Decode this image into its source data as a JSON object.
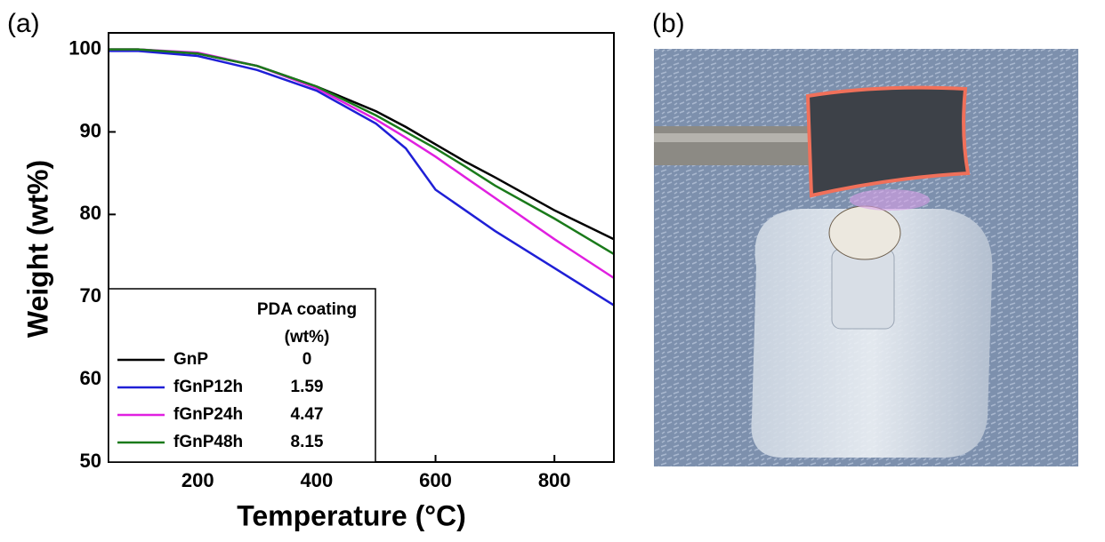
{
  "chart_data": {
    "type": "line",
    "panel_label": "(a)",
    "x_label": "Temperature (°C)",
    "y_label": "Weight (wt%)",
    "x": [
      50,
      100,
      200,
      300,
      400,
      500,
      550,
      600,
      650,
      700,
      800,
      900
    ],
    "series": [
      {
        "name": "GnP",
        "pda_coating": "0",
        "color": "#000000",
        "values": [
          100,
          100,
          99.5,
          98,
          95.5,
          92.5,
          90.6,
          88.5,
          86.4,
          84.5,
          80.5,
          77
        ]
      },
      {
        "name": "fGnP12h",
        "pda_coating": "1.59",
        "color": "#1f1fd6",
        "values": [
          99.8,
          99.8,
          99.2,
          97.5,
          95,
          91,
          88,
          83,
          80.5,
          78,
          73.5,
          69
        ]
      },
      {
        "name": "fGnP24h",
        "pda_coating": "4.47",
        "color": "#e020e0",
        "values": [
          100,
          100,
          99.6,
          98,
          95.3,
          91.5,
          89.3,
          87,
          84.5,
          82,
          77,
          72.3
        ]
      },
      {
        "name": "fGnP48h",
        "pda_coating": "8.15",
        "color": "#1a7a1a",
        "values": [
          100,
          100,
          99.5,
          98,
          95.5,
          92,
          90,
          88,
          85.8,
          83.5,
          79.5,
          75.2
        ]
      }
    ],
    "legend_title": "PDA coating",
    "legend_subtitle": "(wt%)",
    "xlim": [
      50,
      900
    ],
    "xticks": [
      200,
      400,
      600,
      800
    ],
    "ylim": [
      50,
      102
    ],
    "yticks": [
      50,
      60,
      70,
      80,
      90,
      100
    ]
  },
  "photo": {
    "panel_label": "(b)"
  }
}
